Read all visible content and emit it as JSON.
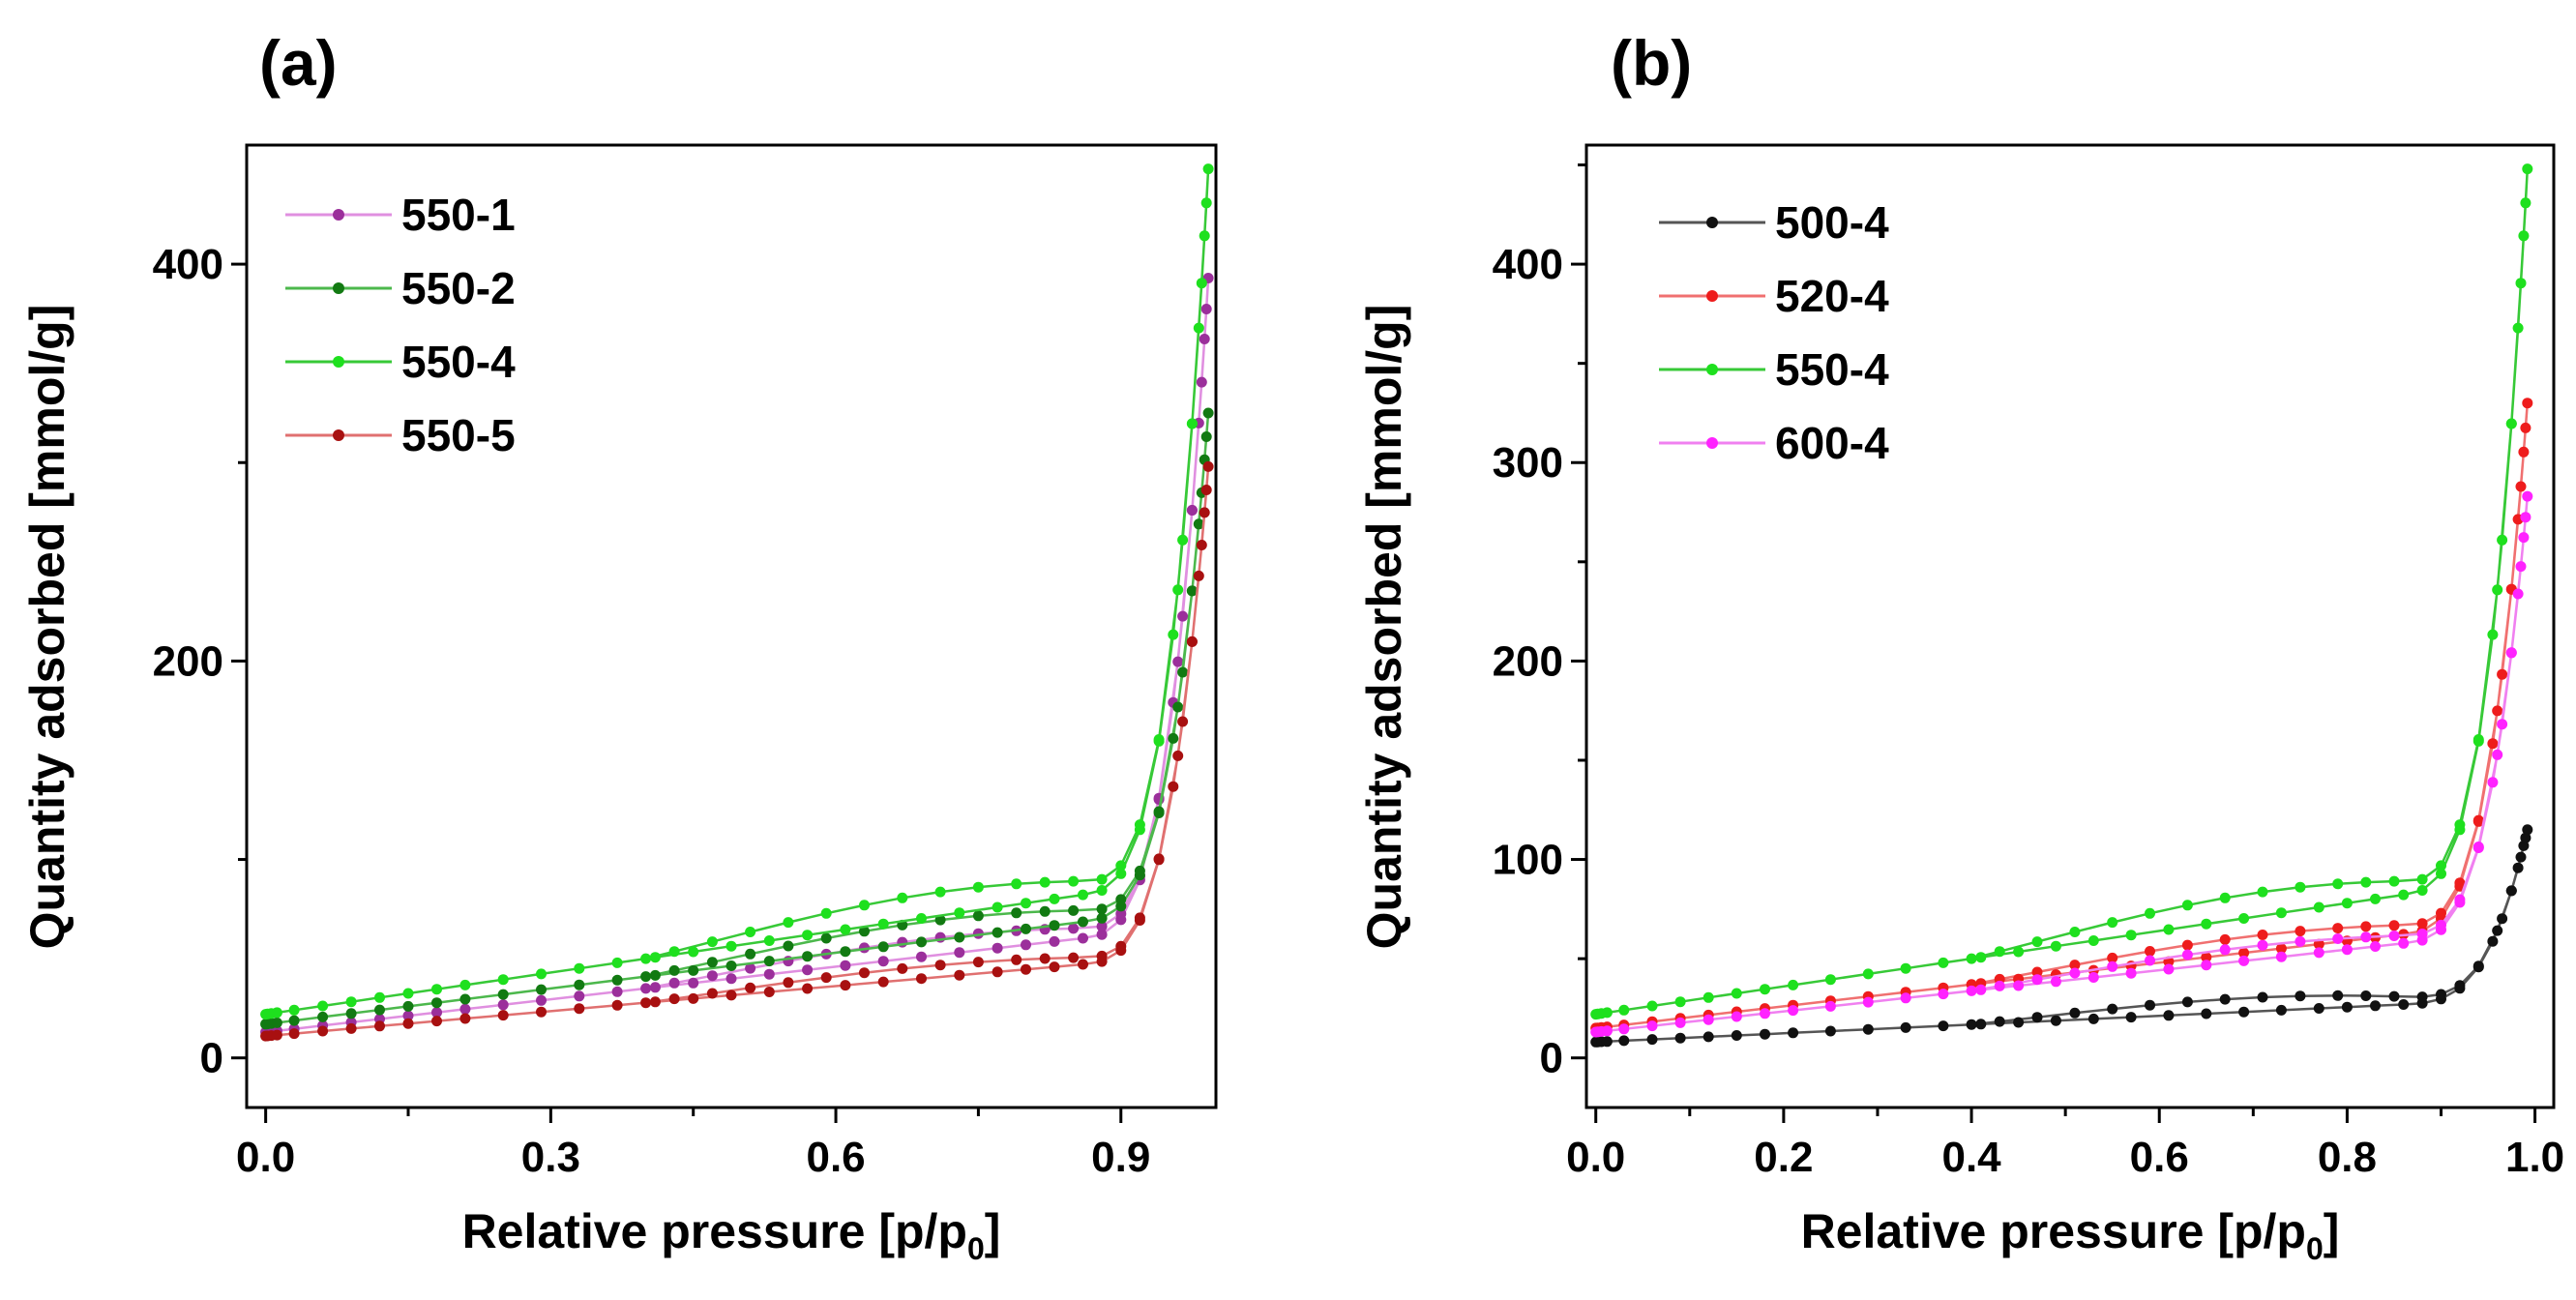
{
  "chart_data": [
    {
      "panel_label": "(a)",
      "type": "line",
      "xlabel": "Relative pressure [p/p",
      "xlabel_sub": "0",
      "xlabel_close": "]",
      "ylabel": "Quantity adsorbed [mmol/g]",
      "xlim": [
        -0.02,
        1.0
      ],
      "ylim": [
        -25,
        460
      ],
      "xticks": [
        0.0,
        0.3,
        0.6,
        0.9
      ],
      "xtick_labels": [
        "0.0",
        "0.3",
        "0.6",
        "0.9"
      ],
      "yticks": [
        0,
        200,
        400
      ],
      "ytick_labels": [
        "0",
        "200",
        "400"
      ],
      "legend_position": "top-left",
      "series": [
        {
          "name": "550-1",
          "color": "#9b2f9b",
          "line_color": "#e08fe0",
          "max": 393,
          "base": 13,
          "slope": 55,
          "hyst": 0.17
        },
        {
          "name": "550-2",
          "color": "#127a12",
          "line_color": "#4cb84c",
          "max": 325,
          "base": 17,
          "slope": 60,
          "hyst": 0.17
        },
        {
          "name": "550-4",
          "color": "#1ee01e",
          "line_color": "#37c937",
          "max": 448,
          "base": 22,
          "slope": 70,
          "hyst": 0.17
        },
        {
          "name": "550-5",
          "color": "#a81010",
          "line_color": "#e07070",
          "max": 298,
          "base": 11,
          "slope": 42,
          "hyst": 0.15
        }
      ]
    },
    {
      "panel_label": "(b)",
      "type": "line",
      "xlabel": "Relative pressure [p/p",
      "xlabel_sub": "0",
      "xlabel_close": "]",
      "ylabel": "Quantity adsorbed [mmol/g]",
      "xlim": [
        -0.01,
        1.02
      ],
      "ylim": [
        -25,
        460
      ],
      "xticks": [
        0.0,
        0.2,
        0.4,
        0.6,
        0.8,
        1.0
      ],
      "xtick_labels": [
        "0.0",
        "0.2",
        "0.4",
        "0.6",
        "0.8",
        "1.0"
      ],
      "yticks": [
        0,
        100,
        200,
        300,
        400
      ],
      "ytick_labels": [
        "0",
        "100",
        "200",
        "300",
        "400"
      ],
      "legend_position": "top-left",
      "series": [
        {
          "name": "500-4",
          "color": "#111111",
          "line_color": "#555555",
          "max": 115,
          "base": 8,
          "slope": 22,
          "hyst": 0.3
        },
        {
          "name": "520-4",
          "color": "#ee1c1c",
          "line_color": "#f07070",
          "max": 330,
          "base": 15,
          "slope": 55,
          "hyst": 0.15
        },
        {
          "name": "550-4",
          "color": "#1ee01e",
          "line_color": "#37c937",
          "max": 448,
          "base": 22,
          "slope": 70,
          "hyst": 0.17
        },
        {
          "name": "600-4",
          "color": "#ff22ff",
          "line_color": "#f080f0",
          "max": 283,
          "base": 13,
          "slope": 52,
          "hyst": 0.14
        }
      ]
    }
  ]
}
